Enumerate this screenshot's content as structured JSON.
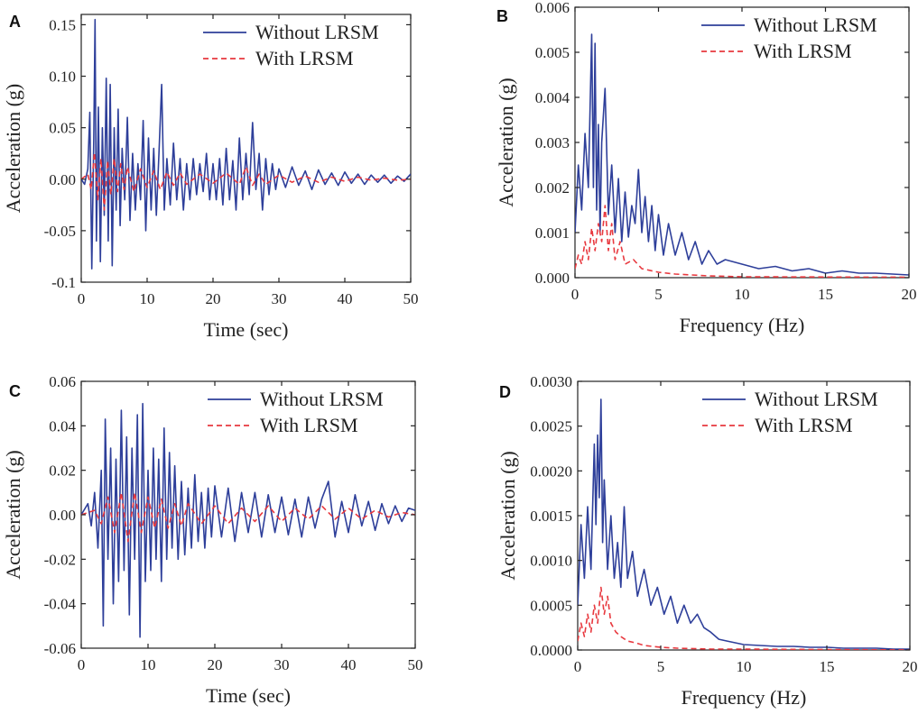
{
  "colors": {
    "without": "#2e3f9a",
    "with": "#e8393f",
    "axis": "#222222"
  },
  "chart_data": [
    {
      "panel": "A",
      "type": "line",
      "domain": "time",
      "xlabel": "Time (sec)",
      "ylabel": "Acceleration (g)",
      "xlim": [
        0,
        50
      ],
      "ylim": [
        -0.1,
        0.16
      ],
      "xticks": [
        0,
        10,
        20,
        30,
        40,
        50
      ],
      "xtick_labels": [
        "0",
        "10",
        "20",
        "30",
        "40",
        "50"
      ],
      "yticks": [
        -0.1,
        -0.05,
        0.0,
        0.05,
        0.1,
        0.15
      ],
      "ytick_labels": [
        "-0.1",
        "-0.05",
        "0.00",
        "0.05",
        "0.10",
        "0.15"
      ],
      "legend_position": "top-right",
      "series": [
        {
          "name": "Without LRSM",
          "style": "solid",
          "x": [
            0,
            0.5,
            1,
            1.3,
            1.6,
            1.9,
            2.1,
            2.3,
            2.6,
            2.9,
            3.2,
            3.5,
            3.8,
            4.1,
            4.4,
            4.7,
            5,
            5.3,
            5.6,
            5.9,
            6.2,
            6.6,
            7,
            7.4,
            7.8,
            8.2,
            8.6,
            9,
            9.4,
            9.8,
            10.2,
            10.6,
            11,
            11.4,
            11.8,
            12.2,
            12.6,
            13,
            13.5,
            14,
            14.5,
            15,
            15.5,
            16,
            16.5,
            17,
            17.5,
            18,
            18.5,
            19,
            19.5,
            20,
            20.5,
            21,
            21.5,
            22,
            22.5,
            23,
            23.5,
            24,
            24.5,
            25,
            25.5,
            26,
            26.5,
            27,
            27.5,
            28,
            28.5,
            29,
            29.5,
            30,
            31,
            32,
            33,
            34,
            35,
            36,
            37,
            38,
            39,
            40,
            41,
            42,
            43,
            44,
            45,
            46,
            47,
            48,
            49,
            50
          ],
          "values": [
            0,
            -0.005,
            0.01,
            0.065,
            -0.087,
            0.04,
            0.155,
            -0.06,
            0.07,
            -0.08,
            0.05,
            -0.035,
            0.098,
            -0.06,
            0.092,
            -0.084,
            0.05,
            -0.03,
            0.068,
            -0.045,
            0.03,
            -0.02,
            0.06,
            -0.04,
            0.025,
            -0.03,
            0.015,
            -0.02,
            0.057,
            -0.05,
            0.04,
            -0.03,
            0.03,
            -0.035,
            0.025,
            0.092,
            -0.03,
            0.02,
            -0.025,
            0.035,
            -0.02,
            0.02,
            -0.03,
            0.015,
            -0.02,
            0.02,
            -0.015,
            0.015,
            -0.012,
            0.025,
            -0.02,
            0.015,
            -0.02,
            0.02,
            -0.025,
            0.03,
            -0.02,
            0.018,
            -0.03,
            0.04,
            -0.02,
            0.025,
            -0.015,
            0.055,
            -0.01,
            0.025,
            -0.03,
            0.02,
            -0.015,
            0.015,
            -0.01,
            0.01,
            -0.008,
            0.012,
            -0.006,
            0.008,
            -0.01,
            0.009,
            -0.005,
            0.006,
            -0.006,
            0.007,
            -0.004,
            0.005,
            -0.005,
            0.004,
            -0.003,
            0.004,
            -0.004,
            0.003,
            -0.002,
            0.005
          ]
        },
        {
          "name": "With LRSM",
          "style": "dashed",
          "x": [
            0,
            1,
            1.5,
            2,
            2.5,
            3,
            3.5,
            4,
            4.5,
            5,
            5.5,
            6,
            6.5,
            7,
            8,
            9,
            10,
            11,
            12,
            13,
            14,
            15,
            16,
            18,
            20,
            22,
            24,
            25,
            26,
            27,
            28,
            30,
            32,
            34,
            36,
            38,
            40,
            42,
            44,
            46,
            48,
            50
          ],
          "values": [
            0,
            0.005,
            -0.01,
            0.026,
            -0.02,
            0.02,
            -0.03,
            0.018,
            -0.015,
            0.02,
            -0.012,
            0.015,
            -0.01,
            0.012,
            -0.012,
            0.01,
            -0.008,
            0.008,
            -0.01,
            0.007,
            -0.006,
            0.006,
            -0.005,
            0.005,
            -0.004,
            0.006,
            -0.005,
            0.012,
            -0.006,
            0.005,
            -0.005,
            0.004,
            -0.003,
            0.003,
            -0.003,
            0.002,
            -0.002,
            0.002,
            -0.001,
            0.001,
            -0.001,
            0
          ]
        }
      ]
    },
    {
      "panel": "B",
      "type": "line",
      "domain": "frequency",
      "xlabel": "Frequency  (Hz)",
      "ylabel": "Acceleration (g)",
      "xlim": [
        0,
        20
      ],
      "ylim": [
        0,
        0.006
      ],
      "xticks": [
        0,
        5,
        10,
        15,
        20
      ],
      "xtick_labels": [
        "0",
        "5",
        "10",
        "15",
        "20"
      ],
      "yticks": [
        0,
        0.001,
        0.002,
        0.003,
        0.004,
        0.005,
        0.006
      ],
      "ytick_labels": [
        "0.000",
        "0.001",
        "0.002",
        "0.003",
        "0.004",
        "0.005",
        "0.006"
      ],
      "legend_position": "top-right",
      "series": [
        {
          "name": "Without LRSM",
          "style": "solid",
          "x": [
            0,
            0.2,
            0.4,
            0.6,
            0.8,
            1.0,
            1.1,
            1.2,
            1.3,
            1.4,
            1.5,
            1.6,
            1.8,
            2.0,
            2.2,
            2.4,
            2.6,
            2.8,
            3.0,
            3.2,
            3.4,
            3.6,
            3.8,
            4.0,
            4.2,
            4.4,
            4.6,
            4.8,
            5.0,
            5.3,
            5.6,
            6.0,
            6.4,
            6.8,
            7.2,
            7.6,
            8.0,
            8.5,
            9,
            10,
            11,
            12,
            13,
            14,
            15,
            16,
            17,
            18,
            19,
            20
          ],
          "values": [
            0.001,
            0.0025,
            0.0015,
            0.0032,
            0.002,
            0.0054,
            0.002,
            0.0052,
            0.0015,
            0.0034,
            0.001,
            0.003,
            0.0042,
            0.0014,
            0.0025,
            0.001,
            0.0022,
            0.0008,
            0.0019,
            0.0009,
            0.0016,
            0.0012,
            0.0024,
            0.001,
            0.0018,
            0.0008,
            0.0016,
            0.0006,
            0.0014,
            0.0005,
            0.0012,
            0.0005,
            0.001,
            0.0004,
            0.0008,
            0.0003,
            0.0006,
            0.0003,
            0.0004,
            0.0003,
            0.0002,
            0.00025,
            0.00015,
            0.0002,
            0.0001,
            0.00015,
            0.0001,
            0.0001,
            8e-05,
            6e-05
          ]
        },
        {
          "name": "With LRSM",
          "style": "dashed",
          "x": [
            0,
            0.2,
            0.4,
            0.6,
            0.8,
            1.0,
            1.2,
            1.4,
            1.6,
            1.8,
            2.0,
            2.2,
            2.4,
            2.7,
            3.0,
            3.5,
            4,
            5,
            6,
            8,
            10,
            20
          ],
          "values": [
            0.0002,
            0.0005,
            0.0003,
            0.0008,
            0.0004,
            0.0011,
            0.0006,
            0.0012,
            0.0008,
            0.0016,
            0.0006,
            0.0012,
            0.0004,
            0.0008,
            0.0003,
            0.0004,
            0.0002,
            0.00012,
            8e-05,
            4e-05,
            2e-05,
            1e-05
          ]
        }
      ]
    },
    {
      "panel": "C",
      "type": "line",
      "domain": "time",
      "xlabel": "Time (sec)",
      "ylabel": "Acceleration (g)",
      "xlim": [
        0,
        50
      ],
      "ylim": [
        -0.06,
        0.06
      ],
      "xticks": [
        0,
        10,
        20,
        30,
        40,
        50
      ],
      "xtick_labels": [
        "0",
        "10",
        "20",
        "30",
        "40",
        "50"
      ],
      "yticks": [
        -0.06,
        -0.04,
        -0.02,
        0.0,
        0.02,
        0.04,
        0.06
      ],
      "ytick_labels": [
        "-0.06",
        "-0.04",
        "-0.02",
        "0.00",
        "0.02",
        "0.04",
        "0.06"
      ],
      "legend_position": "top-right",
      "series": [
        {
          "name": "Without LRSM",
          "style": "solid",
          "x": [
            0,
            1,
            1.5,
            2,
            2.5,
            3,
            3.3,
            3.6,
            4,
            4.4,
            4.8,
            5.2,
            5.6,
            6,
            6.4,
            6.8,
            7.2,
            7.6,
            8,
            8.4,
            8.8,
            9.2,
            9.6,
            10,
            10.4,
            10.8,
            11.2,
            11.6,
            12,
            12.4,
            12.8,
            13.2,
            13.6,
            14,
            14.5,
            15,
            15.5,
            16,
            16.5,
            17,
            17.5,
            18,
            18.5,
            19,
            19.5,
            20,
            21,
            22,
            23,
            24,
            25,
            26,
            27,
            28,
            29,
            30,
            31,
            32,
            33,
            34,
            35,
            36,
            37,
            38,
            39,
            40,
            41,
            42,
            43,
            44,
            45,
            46,
            47,
            48,
            49,
            50
          ],
          "values": [
            0,
            0.005,
            -0.005,
            0.01,
            -0.015,
            0.02,
            -0.05,
            0.043,
            -0.02,
            0.03,
            -0.04,
            0.025,
            -0.03,
            0.047,
            -0.025,
            0.035,
            -0.045,
            0.03,
            -0.02,
            0.045,
            -0.055,
            0.05,
            -0.03,
            0.02,
            -0.025,
            0.03,
            -0.02,
            0.025,
            -0.03,
            0.039,
            -0.02,
            0.028,
            -0.015,
            0.022,
            -0.02,
            0.015,
            -0.018,
            0.012,
            -0.015,
            0.018,
            -0.012,
            0.01,
            -0.015,
            0.012,
            -0.01,
            0.013,
            -0.01,
            0.012,
            -0.012,
            0.01,
            -0.008,
            0.01,
            -0.01,
            0.009,
            -0.008,
            0.008,
            -0.009,
            0.007,
            -0.01,
            0.008,
            -0.006,
            0.007,
            0.015,
            -0.01,
            0.006,
            -0.008,
            0.009,
            -0.005,
            0.006,
            -0.007,
            0.005,
            -0.004,
            0.004,
            -0.003,
            0.003,
            0.002
          ]
        },
        {
          "name": "With LRSM",
          "style": "dashed",
          "x": [
            0,
            2,
            3,
            4,
            5,
            6,
            7,
            8,
            9,
            10,
            11,
            12,
            13,
            14,
            15,
            16,
            18,
            20,
            22,
            24,
            26,
            28,
            30,
            32,
            34,
            36,
            38,
            40,
            42,
            44,
            46,
            48,
            50
          ],
          "values": [
            0,
            0.002,
            -0.004,
            0.008,
            -0.008,
            0.01,
            -0.012,
            0.01,
            -0.008,
            0.008,
            -0.006,
            0.007,
            -0.006,
            0.005,
            -0.005,
            0.005,
            -0.004,
            0.004,
            -0.004,
            0.003,
            -0.003,
            0.004,
            -0.003,
            0.003,
            -0.002,
            0.004,
            -0.002,
            0.003,
            -0.002,
            0.002,
            -0.001,
            0.001,
            0
          ]
        }
      ]
    },
    {
      "panel": "D",
      "type": "line",
      "domain": "frequency",
      "xlabel": "Frequency (Hz)",
      "ylabel": "Acceleration (g)",
      "xlim": [
        0,
        20
      ],
      "ylim": [
        0,
        0.003
      ],
      "xticks": [
        0,
        5,
        10,
        15,
        20
      ],
      "xtick_labels": [
        "0",
        "5",
        "10",
        "15",
        "20"
      ],
      "yticks": [
        0,
        0.0005,
        0.001,
        0.0015,
        0.002,
        0.0025,
        0.003
      ],
      "ytick_labels": [
        "0.0000",
        "0.0005",
        "0.0010",
        "0.0015",
        "0.0020",
        "0.0025",
        "0.0030"
      ],
      "legend_position": "top-right",
      "series": [
        {
          "name": "Without LRSM",
          "style": "solid",
          "x": [
            0,
            0.2,
            0.4,
            0.6,
            0.8,
            1.0,
            1.1,
            1.2,
            1.3,
            1.4,
            1.5,
            1.6,
            1.8,
            2.0,
            2.2,
            2.4,
            2.6,
            2.8,
            3.0,
            3.3,
            3.6,
            4.0,
            4.4,
            4.8,
            5.2,
            5.6,
            6.0,
            6.4,
            6.8,
            7.2,
            7.6,
            8.0,
            8.5,
            9,
            10,
            11,
            12,
            13,
            14,
            15,
            16,
            17,
            18,
            19,
            20
          ],
          "values": [
            0.0005,
            0.0014,
            0.0008,
            0.0016,
            0.0009,
            0.0023,
            0.0014,
            0.0024,
            0.0017,
            0.0028,
            0.0012,
            0.0019,
            0.0009,
            0.0015,
            0.0008,
            0.0012,
            0.0007,
            0.0016,
            0.0008,
            0.0011,
            0.0006,
            0.0009,
            0.0005,
            0.0007,
            0.0004,
            0.0006,
            0.0003,
            0.0005,
            0.0003,
            0.0004,
            0.00025,
            0.0002,
            0.00012,
            0.0001,
            6e-05,
            5e-05,
            4e-05,
            4e-05,
            3e-05,
            3e-05,
            2e-05,
            2e-05,
            2e-05,
            1e-05,
            1e-05
          ]
        },
        {
          "name": "With LRSM",
          "style": "dashed",
          "x": [
            0,
            0.2,
            0.4,
            0.6,
            0.8,
            1.0,
            1.2,
            1.4,
            1.6,
            1.8,
            2.0,
            2.3,
            2.6,
            3.0,
            3.5,
            4,
            5,
            6,
            8,
            10,
            20
          ],
          "values": [
            0.0001,
            0.0003,
            0.00015,
            0.0004,
            0.0002,
            0.0005,
            0.0003,
            0.0007,
            0.0004,
            0.0006,
            0.0003,
            0.0002,
            0.00015,
            0.0001,
            8e-05,
            5e-05,
            3e-05,
            2e-05,
            1e-05,
            1e-05,
            0
          ]
        }
      ]
    }
  ]
}
